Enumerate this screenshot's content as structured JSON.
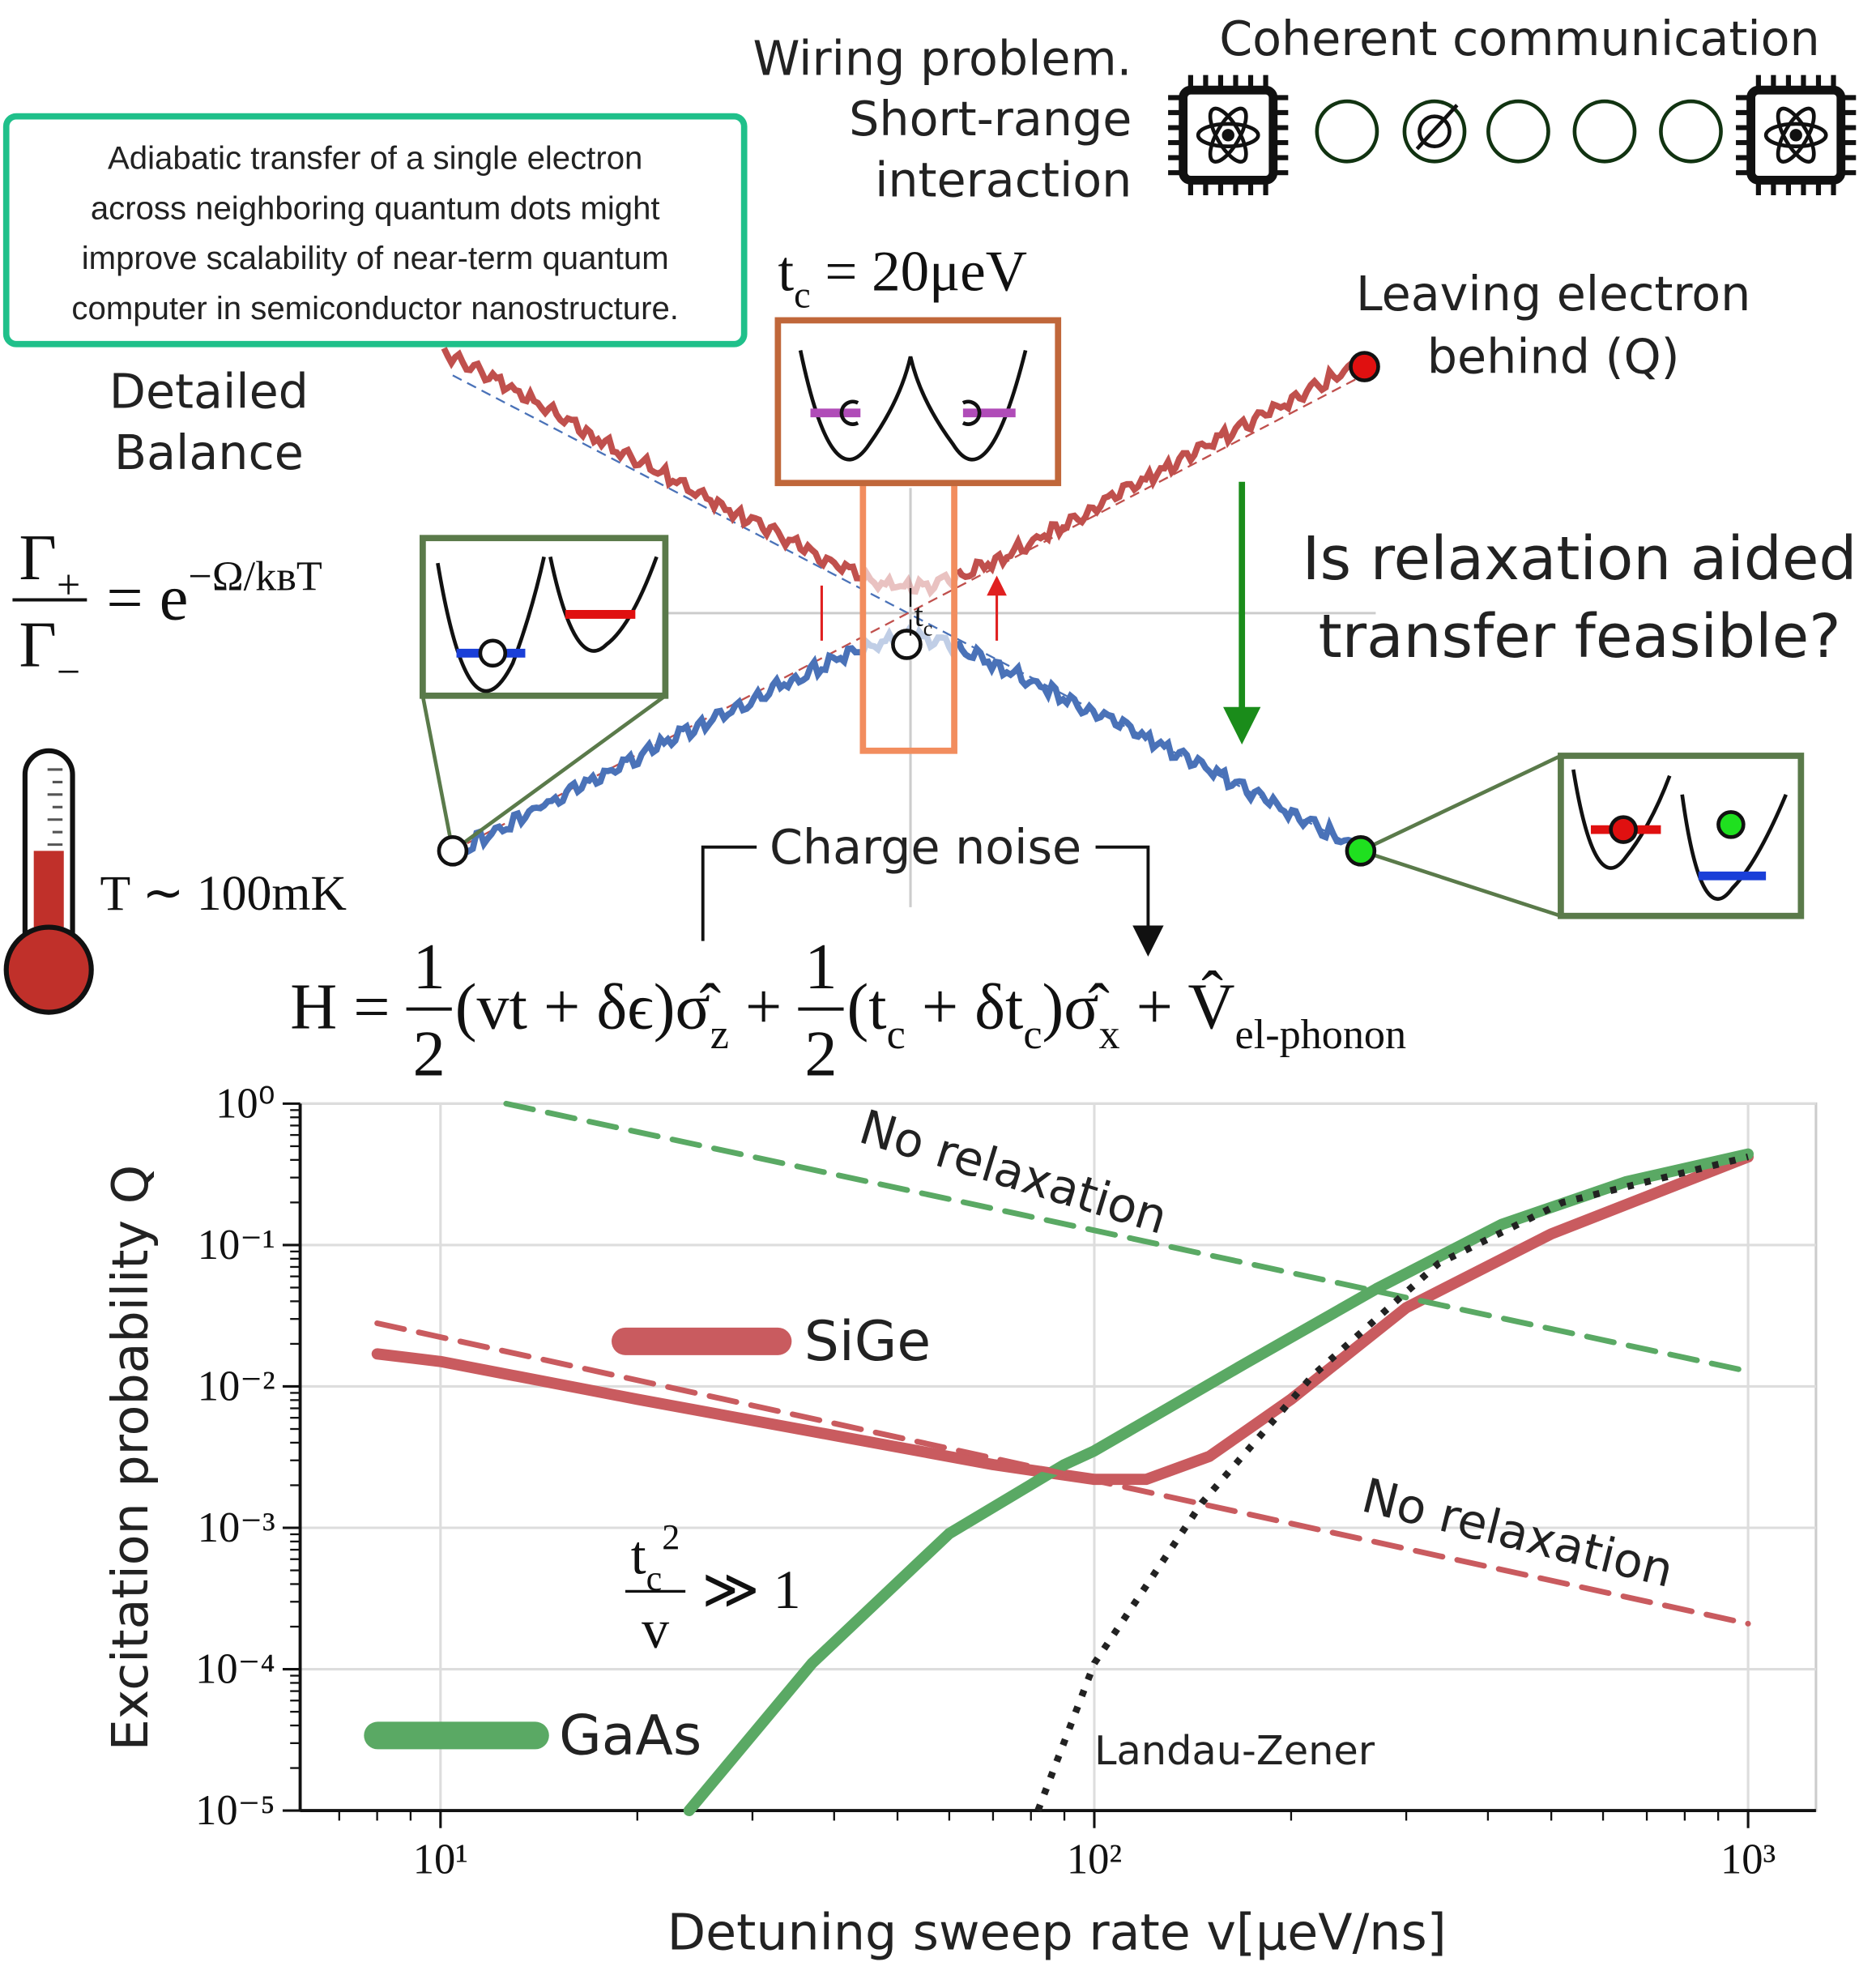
{
  "diagram": {
    "info_box": [
      "Adiabatic transfer of a single electron",
      "across neighboring quantum dots might",
      "improve scalability of near-term quantum",
      "computer in semiconductor nanostructure."
    ],
    "wiring": [
      "Wiring problem.",
      "Short-range",
      "interaction"
    ],
    "coherent": "Coherent communication",
    "detailed_balance": [
      "Detailed",
      "Balance"
    ],
    "rate_equation": [
      {
        "num": [
          {
            "t": "Γ"
          },
          {
            "sub": "+"
          }
        ],
        "den": [
          {
            "t": "Γ"
          },
          {
            "sub": "−"
          }
        ]
      },
      {
        "t": " = e"
      },
      {
        "sup": "−Ω/kʙT"
      }
    ],
    "temperature": [
      {
        "t": "T ∼ 100mK"
      }
    ],
    "tunnel_coupling": [
      {
        "t": "t"
      },
      {
        "sub": "c"
      },
      {
        "t": " = 20μeV"
      }
    ],
    "gap_label": [
      {
        "t": "t"
      },
      {
        "sub": "c"
      }
    ],
    "leaving": [
      "Leaving electron",
      "behind (Q)"
    ],
    "question": [
      "Is relaxation aided",
      "transfer feasible?"
    ],
    "charge_noise": "Charge noise",
    "hamiltonian": [
      {
        "t": "H = "
      },
      {
        "num": [
          {
            "t": "1"
          }
        ],
        "den": [
          {
            "t": "2"
          }
        ]
      },
      {
        "t": "(vt + δϵ)σ̂"
      },
      {
        "sub": "z"
      },
      {
        "t": " + "
      },
      {
        "num": [
          {
            "t": "1"
          }
        ],
        "den": [
          {
            "t": "2"
          }
        ]
      },
      {
        "t": "(t"
      },
      {
        "sub": "c"
      },
      {
        "t": " + δt"
      },
      {
        "sub": "c"
      },
      {
        "t": ")σ̂"
      },
      {
        "sub": "x"
      },
      {
        "t": " + V̂"
      },
      {
        "sub": "el-phonon"
      }
    ]
  },
  "chart_data": {
    "type": "line",
    "xlabel": "Detuning sweep rate v[μeV/ns]",
    "ylabel": "Excitation probability Q",
    "xscale": "log",
    "yscale": "log",
    "xlim": [
      6.1,
      1270
    ],
    "ylim": [
      1e-05,
      1
    ],
    "xticks": [
      {
        "value": 10,
        "label": "10¹"
      },
      {
        "value": 100,
        "label": "10²"
      },
      {
        "value": 1000,
        "label": "10³"
      }
    ],
    "yticks": [
      {
        "value": 1,
        "label": "10⁰"
      },
      {
        "value": 0.1,
        "label": "10⁻¹"
      },
      {
        "value": 0.01,
        "label": "10⁻²"
      },
      {
        "value": 0.001,
        "label": "10⁻³"
      },
      {
        "value": 0.0001,
        "label": "10⁻⁴"
      },
      {
        "value": 1e-05,
        "label": "10⁻⁵"
      }
    ],
    "grid": true,
    "series": [
      {
        "name": "SiGe",
        "color": "#c95b5f",
        "linestyle": "solid",
        "legend": true,
        "x": [
          8,
          10,
          20,
          40,
          70,
          100,
          120,
          150,
          200,
          300,
          500,
          1000
        ],
        "values": [
          0.017,
          0.015,
          0.0081,
          0.0045,
          0.0028,
          0.0022,
          0.0022,
          0.0032,
          0.0081,
          0.036,
          0.12,
          0.42
        ]
      },
      {
        "name": "GaAs",
        "color": "#5aa964",
        "linestyle": "solid",
        "legend": true,
        "x": [
          24,
          37,
          60,
          90,
          100,
          170,
          270,
          420,
          650,
          1000
        ],
        "values": [
          1e-05,
          0.00011,
          0.00091,
          0.0028,
          0.0035,
          0.0145,
          0.049,
          0.14,
          0.28,
          0.44
        ]
      },
      {
        "name": "No relaxation",
        "color": "#5aa964",
        "linestyle": "dashed",
        "legend": false,
        "x": [
          12.6,
          1000
        ],
        "values": [
          1,
          0.0128
        ]
      },
      {
        "name": "No relaxation",
        "color": "#c95b5f",
        "linestyle": "dashed",
        "legend": false,
        "x": [
          8,
          1000
        ],
        "values": [
          0.028,
          0.00021
        ]
      },
      {
        "name": "Landau-Zener",
        "color": "#222222",
        "linestyle": "dotted",
        "legend": false,
        "x": [
          82,
          100,
          146,
          216,
          336,
          520,
          1000
        ],
        "values": [
          1e-05,
          0.00011,
          0.0015,
          0.012,
          0.074,
          0.2,
          0.42
        ]
      }
    ],
    "annotation": [
      {
        "num": [
          {
            "t": "t"
          },
          {
            "sub": "c"
          },
          {
            "sup": "2"
          }
        ],
        "den": [
          {
            "t": "v"
          }
        ]
      },
      {
        "t": " ≫ 1"
      }
    ]
  }
}
